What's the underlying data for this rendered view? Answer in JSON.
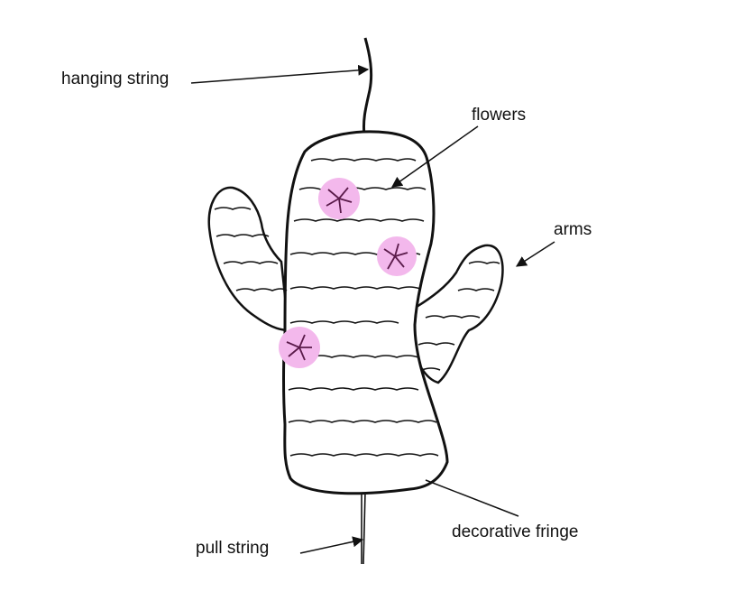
{
  "labels": {
    "hanging_string": "hanging string",
    "flowers": "flowers",
    "arms": "arms",
    "pull_string": "pull string",
    "decorative_fringe": "decorative fringe"
  },
  "colors": {
    "ink": "#111111",
    "flower_highlight": "#f3b8ec",
    "flower_ink": "#5a1a4a",
    "background": "#ffffff"
  }
}
